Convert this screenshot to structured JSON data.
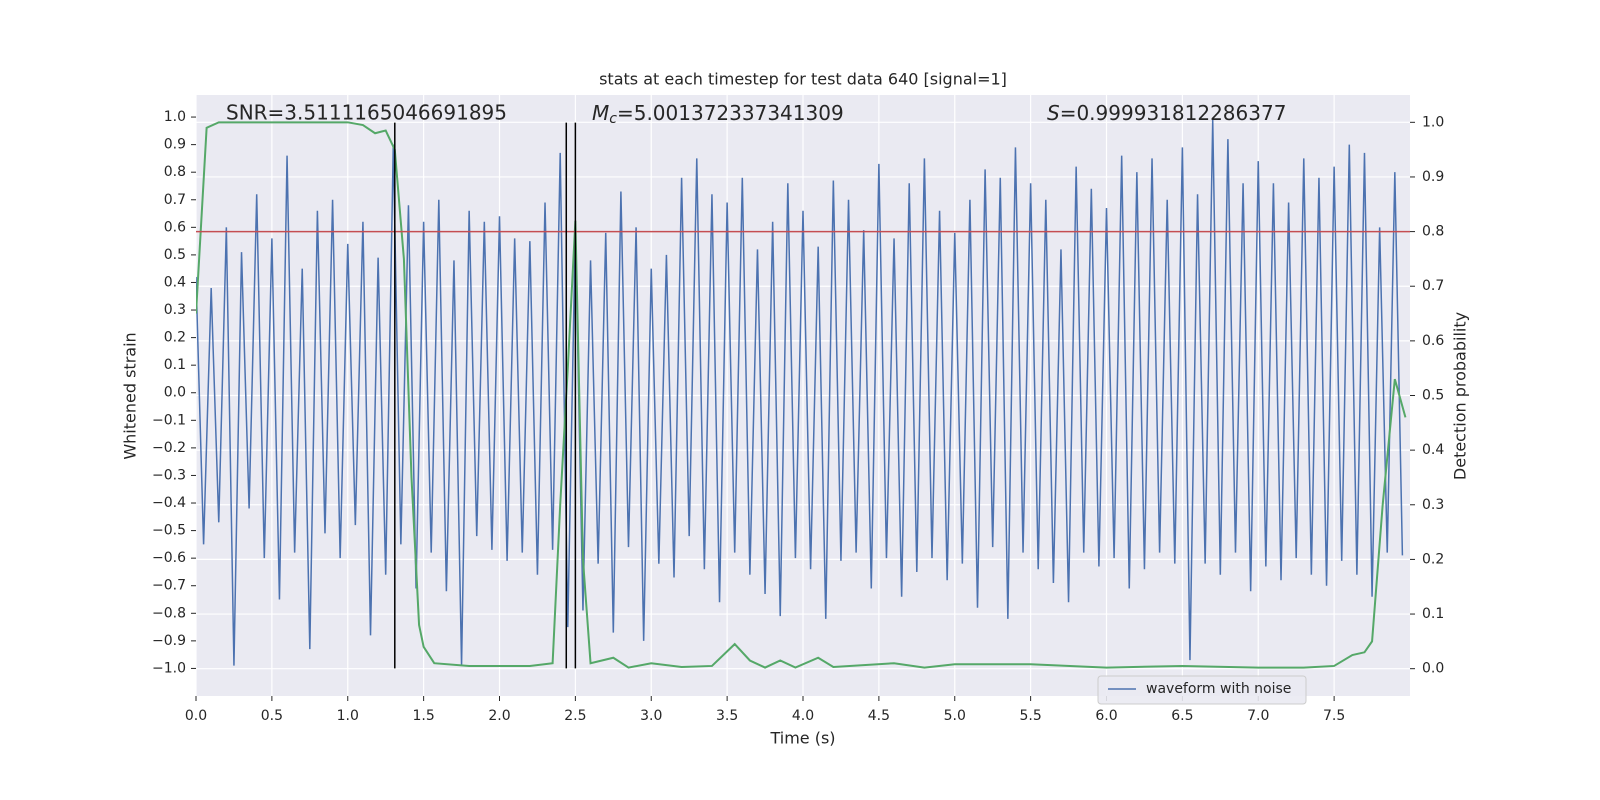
{
  "chart_data": {
    "type": "line",
    "title": "stats at each timestep for test data 640 [signal=1]",
    "xlabel": "Time (s)",
    "ylabel": "Whitened strain",
    "y2label": "Detection probability",
    "annotations": [
      "SNR=3.5111165046691895",
      {
        "italic": "M",
        "sub": "c",
        "text": "=5.001372337341309"
      },
      {
        "italic": "S",
        "text": "=0.999931812286377"
      }
    ],
    "xlim": [
      0,
      8
    ],
    "xticks": [
      {
        "value": 0,
        "label": "0.0"
      },
      0.5,
      {
        "value": 1,
        "label": "1.0"
      },
      1.5,
      {
        "value": 2,
        "label": "2.0"
      },
      2.5,
      {
        "value": 3,
        "label": "3.0"
      },
      3.5,
      {
        "value": 4,
        "label": "4.0"
      },
      4.5,
      {
        "value": 5,
        "label": "5.0"
      },
      5.5,
      {
        "value": 6,
        "label": "6.0"
      },
      6.5,
      {
        "value": 7,
        "label": "7.0"
      },
      7.5
    ],
    "ylim": [
      -1.1,
      1.08
    ],
    "yticks": [
      {
        "value": -1,
        "label": "−1.0"
      },
      {
        "value": -0.9,
        "label": "−0.9"
      },
      {
        "value": -0.8,
        "label": "−0.8"
      },
      {
        "value": -0.7,
        "label": "−0.7"
      },
      {
        "value": -0.6,
        "label": "−0.6"
      },
      {
        "value": -0.5,
        "label": "−0.5"
      },
      {
        "value": -0.4,
        "label": "−0.4"
      },
      {
        "value": -0.3,
        "label": "−0.3"
      },
      {
        "value": -0.2,
        "label": "−0.2"
      },
      {
        "value": -0.1,
        "label": "−0.1"
      },
      {
        "value": 0,
        "label": "0.0"
      },
      0.1,
      0.2,
      0.3,
      0.4,
      0.5,
      0.6,
      0.7,
      0.8,
      0.9,
      {
        "value": 1,
        "label": "1.0"
      }
    ],
    "y2lim": [
      -0.05,
      1.05
    ],
    "y2ticks": [
      {
        "value": 0,
        "label": "0.0"
      },
      0.1,
      0.2,
      0.3,
      0.4,
      0.5,
      0.6,
      0.7,
      0.8,
      0.9,
      {
        "value": 1,
        "label": "1.0"
      }
    ],
    "grid": true,
    "grid_axis": "y2",
    "legend": "lower right",
    "series": [
      {
        "name": "waveform with noise",
        "color": "#4c72b0",
        "x": [
          0,
          0.05,
          0.1,
          0.15,
          0.2,
          0.25,
          0.3,
          0.35,
          0.4,
          0.45,
          0.5,
          0.55,
          0.6,
          0.65,
          0.7,
          0.75,
          0.8,
          0.85,
          0.9,
          0.95,
          1,
          1.05,
          1.1,
          1.15,
          1.2,
          1.25,
          1.3,
          1.35,
          1.4,
          1.45,
          1.5,
          1.55,
          1.6,
          1.65,
          1.7,
          1.75,
          1.8,
          1.85,
          1.9,
          1.95,
          2,
          2.05,
          2.1,
          2.15,
          2.2,
          2.25,
          2.3,
          2.35,
          2.4,
          2.45,
          2.5,
          2.55,
          2.6,
          2.65,
          2.7,
          2.75,
          2.8,
          2.85,
          2.9,
          2.95,
          3,
          3.05,
          3.1,
          3.15,
          3.2,
          3.25,
          3.3,
          3.35,
          3.4,
          3.45,
          3.5,
          3.55,
          3.6,
          3.65,
          3.7,
          3.75,
          3.8,
          3.85,
          3.9,
          3.95,
          4,
          4.05,
          4.1,
          4.15,
          4.2,
          4.25,
          4.3,
          4.35,
          4.4,
          4.45,
          4.5,
          4.55,
          4.6,
          4.65,
          4.7,
          4.75,
          4.8,
          4.85,
          4.9,
          4.95,
          5,
          5.05,
          5.1,
          5.15,
          5.2,
          5.25,
          5.3,
          5.35,
          5.4,
          5.45,
          5.5,
          5.55,
          5.6,
          5.65,
          5.7,
          5.75,
          5.8,
          5.85,
          5.9,
          5.95,
          6,
          6.05,
          6.1,
          6.15,
          6.2,
          6.25,
          6.3,
          6.35,
          6.4,
          6.45,
          6.5,
          6.55,
          6.6,
          6.65,
          6.7,
          6.75,
          6.8,
          6.85,
          6.9,
          6.95,
          7,
          7.05,
          7.1,
          7.15,
          7.2,
          7.25,
          7.3,
          7.35,
          7.4,
          7.45,
          7.5,
          7.55,
          7.6,
          7.65,
          7.7,
          7.75,
          7.8,
          7.85,
          7.9,
          7.95
        ],
        "values": [
          0.42,
          -0.55,
          0.38,
          -0.47,
          0.6,
          -0.99,
          0.51,
          -0.42,
          0.72,
          -0.6,
          0.56,
          -0.75,
          0.86,
          -0.58,
          0.45,
          -0.93,
          0.66,
          -0.51,
          0.7,
          -0.6,
          0.54,
          -0.48,
          0.62,
          -0.88,
          0.49,
          -0.66,
          0.9,
          -0.55,
          0.68,
          -0.71,
          0.62,
          -0.58,
          0.7,
          -0.72,
          0.48,
          -0.99,
          0.66,
          -0.52,
          0.62,
          -0.57,
          0.64,
          -0.61,
          0.56,
          -0.58,
          0.55,
          -0.66,
          0.69,
          -0.57,
          0.87,
          -0.85,
          0.6,
          -0.79,
          0.48,
          -0.62,
          0.58,
          -0.87,
          0.73,
          -0.56,
          0.6,
          -0.9,
          0.45,
          -0.62,
          0.5,
          -0.67,
          0.78,
          -0.52,
          0.85,
          -0.64,
          0.72,
          -0.76,
          0.69,
          -0.58,
          0.78,
          -0.66,
          0.52,
          -0.73,
          0.62,
          -0.81,
          0.76,
          -0.6,
          0.66,
          -0.64,
          0.53,
          -0.82,
          0.77,
          -0.61,
          0.7,
          -0.58,
          0.59,
          -0.71,
          0.83,
          -0.6,
          0.56,
          -0.74,
          0.76,
          -0.65,
          0.85,
          -0.6,
          0.66,
          -0.68,
          0.58,
          -0.62,
          0.7,
          -0.78,
          0.81,
          -0.56,
          0.78,
          -0.82,
          0.89,
          -0.58,
          0.76,
          -0.64,
          0.7,
          -0.69,
          0.52,
          -0.76,
          0.82,
          -0.58,
          0.74,
          -0.63,
          0.67,
          -0.6,
          0.86,
          -0.71,
          0.8,
          -0.64,
          0.85,
          -0.58,
          0.7,
          -0.62,
          0.89,
          -0.97,
          0.72,
          -0.62,
          0.99,
          -0.66,
          0.92,
          -0.58,
          0.76,
          -0.72,
          0.84,
          -0.63,
          0.76,
          -0.68,
          0.69,
          -0.6,
          0.85,
          -0.66,
          0.78,
          -0.7,
          0.82,
          -0.61,
          0.9,
          -0.66,
          0.87,
          -0.74,
          0.6,
          -0.58,
          0.8,
          -0.59
        ]
      },
      {
        "color": "#55a868",
        "axis": "y2",
        "x": [
          0,
          0.07,
          0.15,
          0.8,
          1,
          1.1,
          1.18,
          1.25,
          1.31,
          1.37,
          1.42,
          1.47,
          1.5,
          1.57,
          1.8,
          2,
          2.2,
          2.35,
          2.4,
          2.45,
          2.5,
          2.55,
          2.6,
          2.75,
          2.85,
          3,
          3.2,
          3.4,
          3.55,
          3.65,
          3.75,
          3.85,
          3.95,
          4.1,
          4.2,
          4.6,
          4.8,
          5,
          5.5,
          6,
          6.5,
          7,
          7.3,
          7.5,
          7.62,
          7.7,
          7.75,
          7.82,
          7.9,
          7.97
        ],
        "values": [
          0.65,
          0.99,
          1,
          1,
          1,
          0.995,
          0.98,
          0.985,
          0.95,
          0.75,
          0.35,
          0.08,
          0.04,
          0.01,
          0.005,
          0.005,
          0.005,
          0.01,
          0.3,
          0.55,
          0.82,
          0.2,
          0.01,
          0.02,
          0.002,
          0.01,
          0.003,
          0.005,
          0.045,
          0.015,
          0.002,
          0.015,
          0.002,
          0.02,
          0.003,
          0.01,
          0.002,
          0.008,
          0.008,
          0.002,
          0.005,
          0.002,
          0.002,
          0.005,
          0.025,
          0.03,
          0.05,
          0.3,
          0.53,
          0.46
        ]
      }
    ],
    "hline": {
      "y2": 0.8,
      "color": "#c44e52"
    },
    "vlines": {
      "x": [
        1.31,
        2.44,
        2.5
      ],
      "ymin": -1,
      "ymax": 0.98,
      "color": "#000000"
    }
  }
}
